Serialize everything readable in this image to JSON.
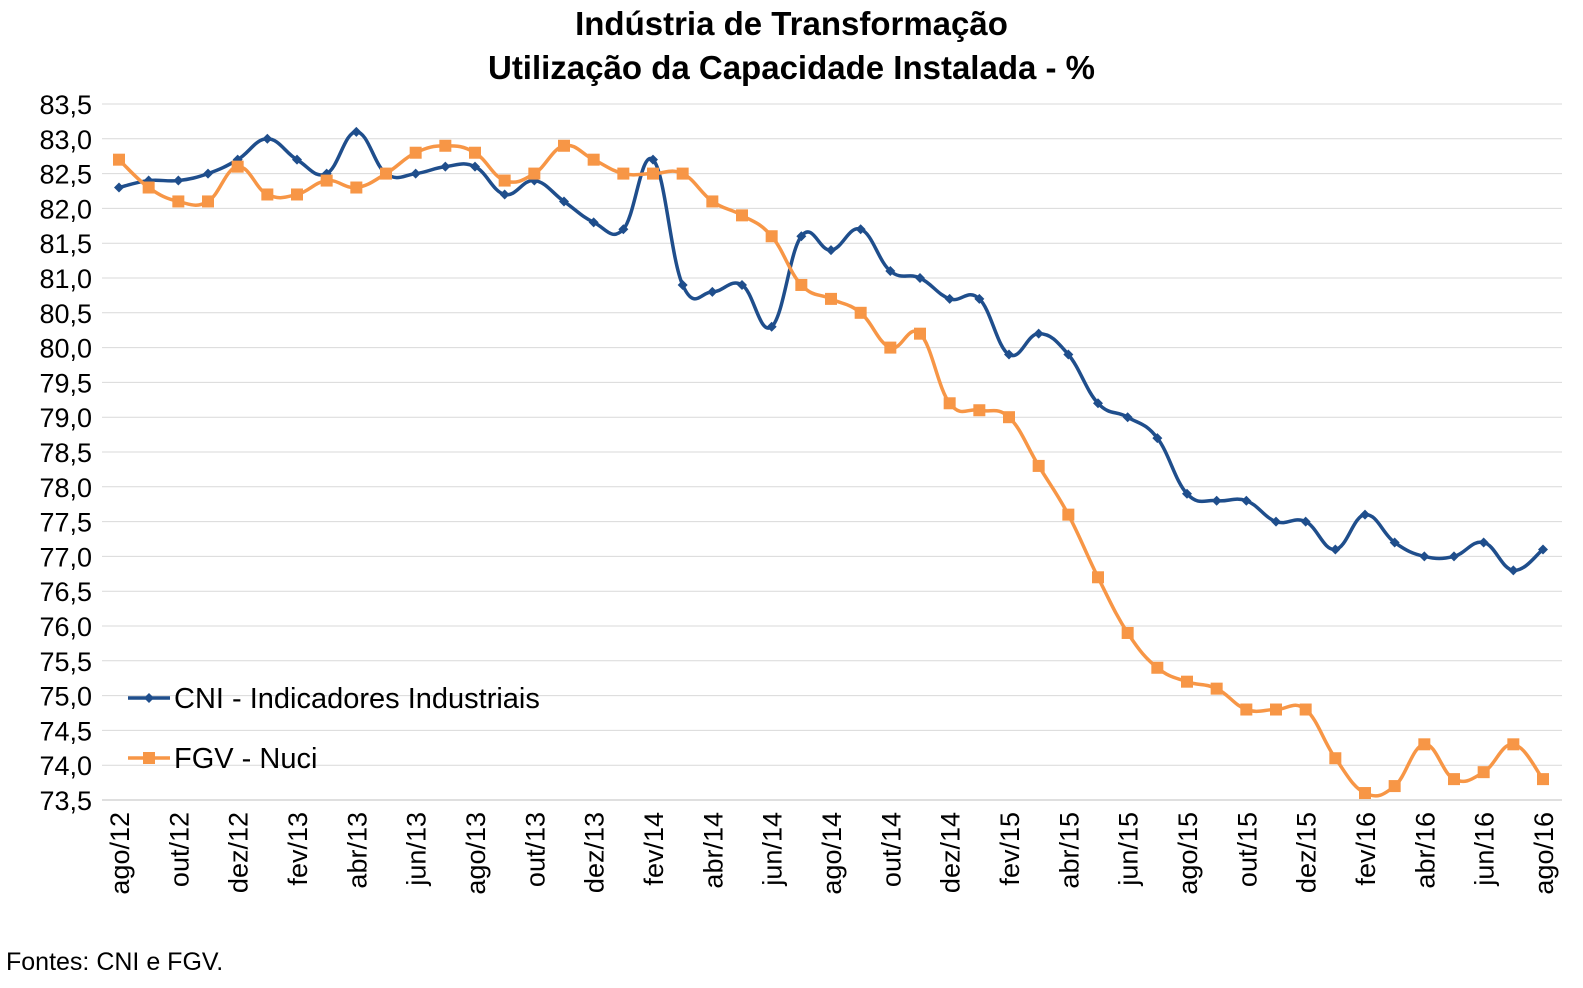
{
  "chart_data": {
    "type": "line",
    "title": "Indústria de Transformação",
    "subtitle": "Utilização da Capacidade Instalada - %",
    "xlabel": "",
    "ylabel": "",
    "ylim": [
      73.5,
      83.5
    ],
    "yticks": [
      "83,5",
      "83,0",
      "82,5",
      "82,0",
      "81,5",
      "81,0",
      "80,5",
      "80,0",
      "79,5",
      "79,0",
      "78,5",
      "78,0",
      "77,5",
      "77,0",
      "76,5",
      "76,0",
      "75,5",
      "75,0",
      "74,5",
      "74,0",
      "73,5"
    ],
    "x_tick_labels": [
      "ago/12",
      "out/12",
      "dez/12",
      "fev/13",
      "abr/13",
      "jun/13",
      "ago/13",
      "out/13",
      "dez/13",
      "fev/14",
      "abr/14",
      "jun/14",
      "ago/14",
      "out/14",
      "dez/14",
      "fev/15",
      "abr/15",
      "jun/15",
      "ago/15",
      "out/15",
      "dez/15",
      "fev/16",
      "abr/16",
      "jun/16",
      "ago/16"
    ],
    "categories": [
      "ago/12",
      "set/12",
      "out/12",
      "nov/12",
      "dez/12",
      "jan/13",
      "fev/13",
      "mar/13",
      "abr/13",
      "mai/13",
      "jun/13",
      "jul/13",
      "ago/13",
      "set/13",
      "out/13",
      "nov/13",
      "dez/13",
      "jan/14",
      "fev/14",
      "mar/14",
      "abr/14",
      "mai/14",
      "jun/14",
      "jul/14",
      "ago/14",
      "set/14",
      "out/14",
      "nov/14",
      "dez/14",
      "jan/15",
      "fev/15",
      "mar/15",
      "abr/15",
      "mai/15",
      "jun/15",
      "jul/15",
      "ago/15",
      "set/15",
      "out/15",
      "nov/15",
      "dez/15",
      "jan/16",
      "fev/16",
      "mar/16",
      "abr/16",
      "mai/16",
      "jun/16",
      "jul/16",
      "ago/16"
    ],
    "grid": true,
    "legend_position": "bottom-left",
    "series": [
      {
        "name": "CNI - Indicadores Industriais",
        "color": "#1f4e8c",
        "marker": "diamond",
        "values": [
          82.3,
          82.4,
          82.4,
          82.5,
          82.7,
          83.0,
          82.7,
          82.5,
          83.1,
          82.5,
          82.5,
          82.6,
          82.6,
          82.2,
          82.4,
          82.1,
          81.8,
          81.7,
          82.7,
          80.9,
          80.8,
          80.9,
          80.3,
          81.6,
          81.4,
          81.7,
          81.1,
          81.0,
          80.7,
          80.7,
          79.9,
          80.2,
          79.9,
          79.2,
          79.0,
          78.7,
          77.9,
          77.8,
          77.8,
          77.5,
          77.5,
          77.1,
          77.6,
          77.2,
          77.0,
          77.0,
          77.2,
          76.8,
          77.1
        ]
      },
      {
        "name": "FGV - Nuci",
        "color": "#f79646",
        "marker": "square",
        "values": [
          82.7,
          82.3,
          82.1,
          82.1,
          82.6,
          82.2,
          82.2,
          82.4,
          82.3,
          82.5,
          82.8,
          82.9,
          82.8,
          82.4,
          82.5,
          82.9,
          82.7,
          82.5,
          82.5,
          82.5,
          82.1,
          81.9,
          81.6,
          80.9,
          80.7,
          80.5,
          80.0,
          80.2,
          79.2,
          79.1,
          79.0,
          78.3,
          77.6,
          76.7,
          75.9,
          75.4,
          75.2,
          75.1,
          74.8,
          74.8,
          74.8,
          74.1,
          73.6,
          73.7,
          74.3,
          73.8,
          73.9,
          74.3,
          73.8
        ]
      }
    ]
  },
  "footnote": "Fontes: CNI e FGV."
}
